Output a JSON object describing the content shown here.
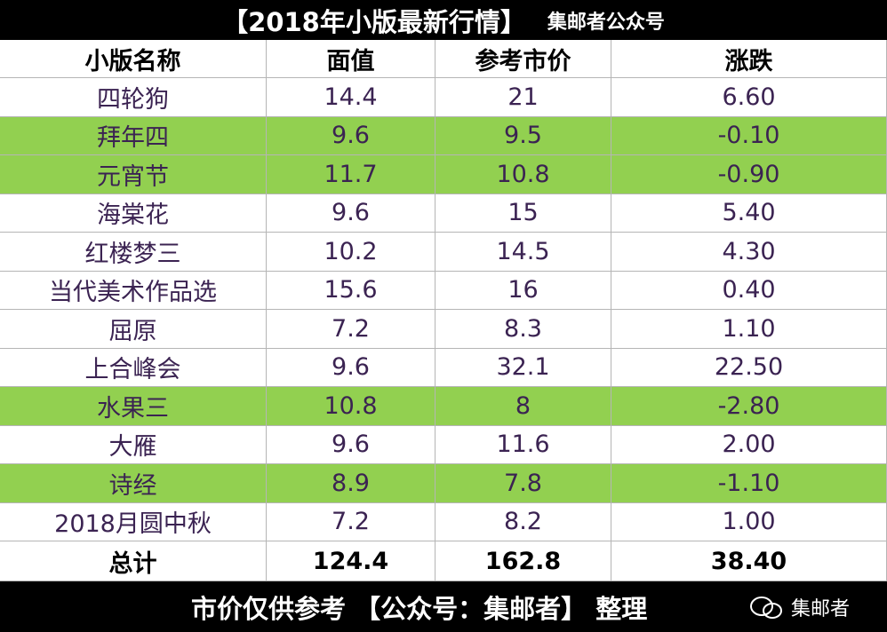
{
  "header": {
    "title": "【2018年小版最新行情】",
    "subtitle": "集邮者公众号"
  },
  "table": {
    "columns": [
      "小版名称",
      "面值",
      "参考市价",
      "涨跌"
    ],
    "rows": [
      {
        "cells": [
          "四轮狗",
          "14.4",
          "21",
          "6.60"
        ]
      },
      {
        "cells": [
          "拜年四",
          "9.6",
          "9.5",
          "-0.10"
        ],
        "fill": "#92d050"
      },
      {
        "cells": [
          "元宵节",
          "11.7",
          "10.8",
          "-0.90"
        ],
        "fill": "#92d050"
      },
      {
        "cells": [
          "海棠花",
          "9.6",
          "15",
          "5.40"
        ]
      },
      {
        "cells": [
          "红楼梦三",
          "10.2",
          "14.5",
          "4.30"
        ]
      },
      {
        "cells": [
          "当代美术作品选",
          "15.6",
          "16",
          "0.40"
        ]
      },
      {
        "cells": [
          "屈原",
          "7.2",
          "8.3",
          "1.10"
        ]
      },
      {
        "cells": [
          "上合峰会",
          "9.6",
          "32.1",
          "22.50"
        ]
      },
      {
        "cells": [
          "水果三",
          "10.8",
          "8",
          "-2.80"
        ],
        "fill": "#92d050"
      },
      {
        "cells": [
          "大雁",
          "9.6",
          "11.6",
          "2.00"
        ]
      },
      {
        "cells": [
          "诗经",
          "8.9",
          "7.8",
          "-1.10"
        ],
        "fill": "#92d050"
      },
      {
        "cells": [
          "2018月圆中秋",
          "7.2",
          "8.2",
          "1.00"
        ]
      }
    ],
    "total": [
      "总计",
      "124.4",
      "162.8",
      "38.40"
    ]
  },
  "footer": {
    "text": "市价仅供参考 【公众号：集邮者】 整理",
    "watermark": "集邮者"
  }
}
